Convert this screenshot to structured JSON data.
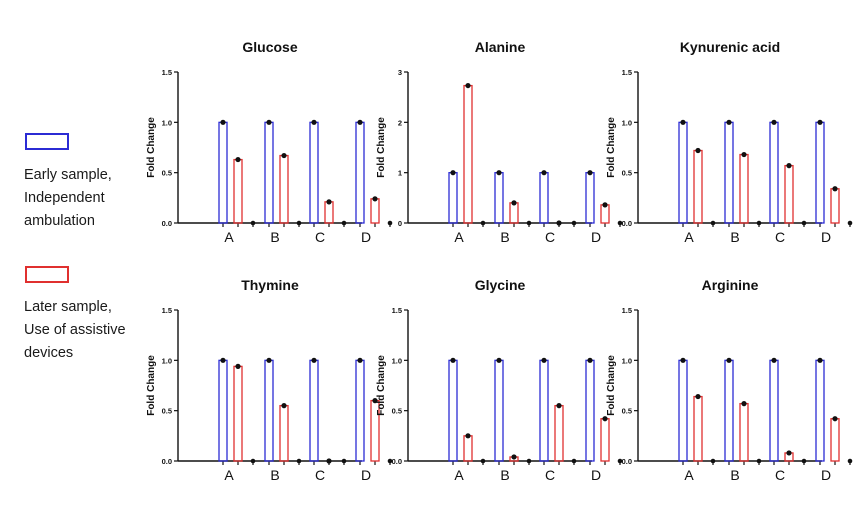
{
  "legend": {
    "early": {
      "lines": [
        "Early sample,",
        "Independent",
        "ambulation"
      ],
      "color": "#2b2bd4"
    },
    "later": {
      "lines": [
        "Later sample,",
        "Use of assistive",
        "devices"
      ],
      "color": "#e0302f"
    }
  },
  "y_axis_label": "Fold Change",
  "chart_data": [
    {
      "type": "bar",
      "title": "Glucose",
      "categories": [
        "A",
        "B",
        "C",
        "D"
      ],
      "ylim": [
        0,
        1.5
      ],
      "yticks": [
        "0.0",
        "0.5",
        "1.0",
        "1.5"
      ],
      "series": [
        {
          "name": "Early sample, Independent ambulation",
          "values": [
            1.0,
            1.0,
            1.0,
            1.0
          ]
        },
        {
          "name": "Later sample, Use of assistive devices",
          "values": [
            0.63,
            0.67,
            0.21,
            0.24
          ]
        }
      ]
    },
    {
      "type": "bar",
      "title": "Alanine",
      "categories": [
        "A",
        "B",
        "C",
        "D"
      ],
      "ylim": [
        0,
        3
      ],
      "yticks": [
        "0",
        "1",
        "2",
        "3"
      ],
      "series": [
        {
          "name": "Early sample, Independent ambulation",
          "values": [
            1.0,
            1.0,
            1.0,
            1.0
          ]
        },
        {
          "name": "Later sample, Use of assistive devices",
          "values": [
            2.73,
            0.4,
            0.0,
            0.36
          ]
        }
      ]
    },
    {
      "type": "bar",
      "title": "Kynurenic acid",
      "categories": [
        "A",
        "B",
        "C",
        "D"
      ],
      "ylim": [
        0,
        1.5
      ],
      "yticks": [
        "0.0",
        "0.5",
        "1.0",
        "1.5"
      ],
      "series": [
        {
          "name": "Early sample, Independent ambulation",
          "values": [
            1.0,
            1.0,
            1.0,
            1.0
          ]
        },
        {
          "name": "Later sample, Use of assistive devices",
          "values": [
            0.72,
            0.68,
            0.57,
            0.34
          ]
        }
      ]
    },
    {
      "type": "bar",
      "title": "Thymine",
      "categories": [
        "A",
        "B",
        "C",
        "D"
      ],
      "ylim": [
        0,
        1.5
      ],
      "yticks": [
        "0.0",
        "0.5",
        "1.0",
        "1.5"
      ],
      "series": [
        {
          "name": "Early sample, Independent ambulation",
          "values": [
            1.0,
            1.0,
            1.0,
            1.0
          ]
        },
        {
          "name": "Later sample, Use of assistive devices",
          "values": [
            0.94,
            0.55,
            0.0,
            0.6
          ]
        }
      ]
    },
    {
      "type": "bar",
      "title": "Glycine",
      "categories": [
        "A",
        "B",
        "C",
        "D"
      ],
      "ylim": [
        0,
        1.5
      ],
      "yticks": [
        "0.0",
        "0.5",
        "1.0",
        "1.5"
      ],
      "series": [
        {
          "name": "Early sample, Independent ambulation",
          "values": [
            1.0,
            1.0,
            1.0,
            1.0
          ]
        },
        {
          "name": "Later sample, Use of assistive devices",
          "values": [
            0.25,
            0.04,
            0.55,
            0.42
          ]
        }
      ]
    },
    {
      "type": "bar",
      "title": "Arginine",
      "categories": [
        "A",
        "B",
        "C",
        "D"
      ],
      "ylim": [
        0,
        1.5
      ],
      "yticks": [
        "0.0",
        "0.5",
        "1.0",
        "1.5"
      ],
      "series": [
        {
          "name": "Early sample, Independent ambulation",
          "values": [
            1.0,
            1.0,
            1.0,
            1.0
          ]
        },
        {
          "name": "Later sample, Use of assistive devices",
          "values": [
            0.64,
            0.57,
            0.08,
            0.42
          ]
        }
      ]
    }
  ]
}
